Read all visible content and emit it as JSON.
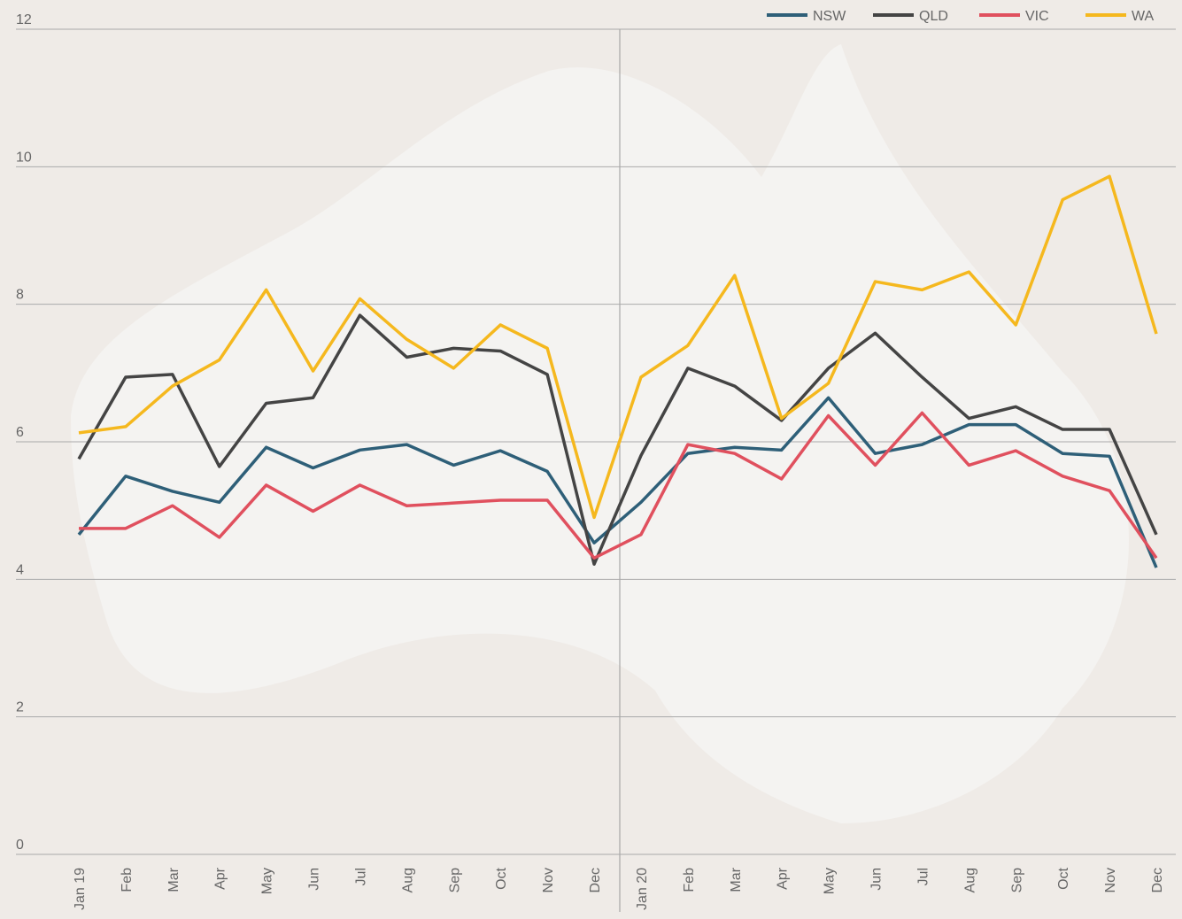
{
  "chart_data": {
    "type": "line",
    "categories": [
      "Jan 19",
      "Feb",
      "Mar",
      "Apr",
      "May",
      "Jun",
      "Jul",
      "Aug",
      "Sep",
      "Oct",
      "Nov",
      "Dec",
      "Jan 20",
      "Feb",
      "Mar",
      "Apr",
      "May",
      "Jun",
      "Jul",
      "Aug",
      "Sep",
      "Oct",
      "Nov",
      "Dec"
    ],
    "series": [
      {
        "name": "NSW",
        "color": "#2e5f78",
        "values": [
          4.65,
          5.5,
          5.28,
          5.12,
          5.92,
          5.62,
          5.88,
          5.96,
          5.66,
          5.87,
          5.57,
          4.53,
          5.12,
          5.83,
          5.92,
          5.88,
          6.64,
          5.83,
          5.96,
          6.25,
          6.25,
          5.83,
          5.79,
          4.17
        ]
      },
      {
        "name": "QLD",
        "color": "#444444",
        "values": [
          5.75,
          6.94,
          6.98,
          5.64,
          6.56,
          6.64,
          7.84,
          7.23,
          7.36,
          7.32,
          6.98,
          4.22,
          5.8,
          7.07,
          6.81,
          6.31,
          7.07,
          7.58,
          6.94,
          6.34,
          6.51,
          6.18,
          6.18,
          4.65
        ]
      },
      {
        "name": "VIC",
        "color": "#e0505e",
        "values": [
          4.74,
          4.74,
          5.07,
          4.61,
          5.37,
          4.99,
          5.37,
          5.07,
          5.11,
          5.15,
          5.15,
          4.31,
          4.65,
          5.96,
          5.83,
          5.46,
          6.38,
          5.66,
          6.42,
          5.66,
          5.87,
          5.5,
          5.29,
          4.31
        ]
      },
      {
        "name": "WA",
        "color": "#f5b81e",
        "values": [
          6.13,
          6.22,
          6.81,
          7.19,
          8.21,
          7.03,
          8.08,
          7.49,
          7.07,
          7.7,
          7.36,
          4.9,
          6.94,
          7.4,
          8.42,
          6.34,
          6.85,
          8.33,
          8.21,
          8.47,
          7.7,
          9.52,
          9.86,
          7.57
        ]
      }
    ],
    "ylim": [
      0,
      12
    ],
    "yticks": [
      0,
      2,
      4,
      6,
      8,
      10,
      12
    ],
    "grid": true,
    "legend": "top-right"
  }
}
